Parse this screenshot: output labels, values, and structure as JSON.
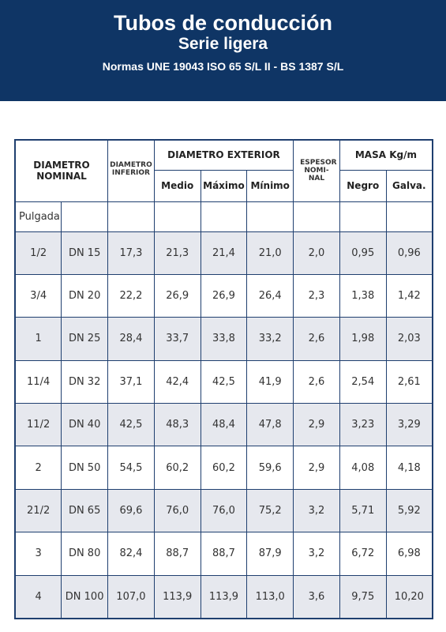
{
  "header": {
    "title": "Tubos de conducción",
    "subtitle": "Serie ligera",
    "norms": "Normas UNE 19043 ISO 65 S/L II - BS 1387 S/L"
  },
  "table": {
    "headers": {
      "nominal": "DIAMETRO NOMINAL",
      "inferior": "DIAMETRO INFERIOR",
      "exterior": "DIAMETRO EXTERIOR",
      "exterior_sub": [
        "Medio",
        "Máximo",
        "Mínimo"
      ],
      "espesor": "ESPESOR NOMI-NAL",
      "masa": "MASA Kg/m",
      "masa_sub": [
        "Negro",
        "Galva."
      ]
    },
    "unit_row": "Pulgada",
    "rows": [
      [
        "1/2",
        "DN 15",
        "17,3",
        "21,3",
        "21,4",
        "21,0",
        "2,0",
        "0,95",
        "0,96"
      ],
      [
        "3/4",
        "DN 20",
        "22,2",
        "26,9",
        "26,9",
        "26,4",
        "2,3",
        "1,38",
        "1,42"
      ],
      [
        "1",
        "DN 25",
        "28,4",
        "33,7",
        "33,8",
        "33,2",
        "2,6",
        "1,98",
        "2,03"
      ],
      [
        "11/4",
        "DN 32",
        "37,1",
        "42,4",
        "42,5",
        "41,9",
        "2,6",
        "2,54",
        "2,61"
      ],
      [
        "11/2",
        "DN 40",
        "42,5",
        "48,3",
        "48,4",
        "47,8",
        "2,9",
        "3,23",
        "3,29"
      ],
      [
        "2",
        "DN 50",
        "54,5",
        "60,2",
        "60,2",
        "59,6",
        "2,9",
        "4,08",
        "4,18"
      ],
      [
        "21/2",
        "DN 65",
        "69,6",
        "76,0",
        "76,0",
        "75,2",
        "3,2",
        "5,71",
        "5,92"
      ],
      [
        "3",
        "DN 80",
        "82,4",
        "88,7",
        "88,7",
        "87,9",
        "3,2",
        "6,72",
        "6,98"
      ],
      [
        "4",
        "DN 100",
        "107,0",
        "113,9",
        "113,9",
        "113,0",
        "3,6",
        "9,75",
        "10,20"
      ]
    ]
  }
}
